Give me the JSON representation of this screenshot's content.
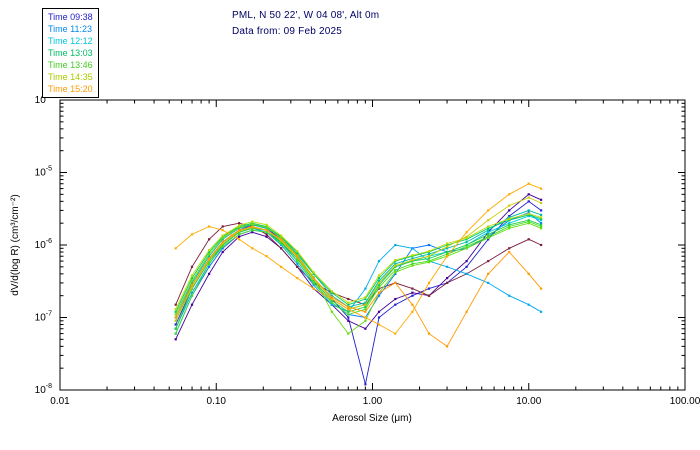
{
  "header": {
    "title_line1": "PML, N 50 22', W 04 08', Alt 0m",
    "title_line2": "Data from: 09 Feb 2025",
    "title_color": "#000066"
  },
  "legend": {
    "items": [
      {
        "label": "Time 09:38",
        "color": "#2222cc"
      },
      {
        "label": "Time 11:23",
        "color": "#0088ee"
      },
      {
        "label": "Time 12:12",
        "color": "#00c4dd"
      },
      {
        "label": "Time 13:03",
        "color": "#00bb66"
      },
      {
        "label": "Time 13:46",
        "color": "#44cc22"
      },
      {
        "label": "Time 14:35",
        "color": "#aacc00"
      },
      {
        "label": "Time 15:20",
        "color": "#ff9900"
      }
    ]
  },
  "chart_data": {
    "type": "line",
    "title": "PML, N 50 22', W 04 08', Alt 0m",
    "subtitle": "Data from: 09 Feb 2025",
    "xlabel": "Aerosol Size (μm)",
    "ylabel": "dV/d(log R) (cm³/cm⁻²)",
    "x_scale": "log",
    "y_scale": "log",
    "xlim": [
      0.01,
      100
    ],
    "ylim": [
      1e-08,
      0.0001
    ],
    "x_ticks": [
      "0.01",
      "0.10",
      "1.00",
      "10.00",
      "100.00"
    ],
    "y_tick_exponents": [
      -8,
      -7,
      -6,
      -5,
      -4
    ],
    "grid": false,
    "legend_position": "top-left-outside",
    "x": [
      0.055,
      0.07,
      0.09,
      0.11,
      0.14,
      0.17,
      0.21,
      0.26,
      0.33,
      0.42,
      0.55,
      0.7,
      0.9,
      1.1,
      1.4,
      1.8,
      2.3,
      3.0,
      4.0,
      5.5,
      7.5,
      10.0,
      12.0
    ],
    "series": [
      {
        "name": "Time 09:38",
        "color": "#2222cc",
        "values": [
          8e-08,
          2.5e-07,
          6e-07,
          1.1e-06,
          1.6e-06,
          1.9e-06,
          1.7e-06,
          1.2e-06,
          7e-07,
          3.5e-07,
          1.8e-07,
          1e-07,
          1.2e-08,
          1e-07,
          1.5e-07,
          2e-07,
          2.5e-07,
          3e-07,
          5e-07,
          1.2e-06,
          2.5e-06,
          4e-06,
          3e-06
        ]
      },
      {
        "name": "Time 09:38",
        "color": "#440099",
        "values": [
          5e-08,
          1.5e-07,
          4e-07,
          8e-07,
          1.3e-06,
          1.5e-06,
          1.3e-06,
          9e-07,
          5e-07,
          2.5e-07,
          1.5e-07,
          9e-08,
          7e-08,
          1.2e-07,
          1.8e-07,
          2.2e-07,
          2e-07,
          3.5e-07,
          6e-07,
          1.5e-06,
          3e-06,
          5e-06,
          4.2e-06
        ]
      },
      {
        "name": "Time 09:38",
        "color": "#7a1f3d",
        "values": [
          1.5e-07,
          5e-07,
          1.2e-06,
          1.8e-06,
          2e-06,
          1.8e-06,
          1.4e-06,
          9e-07,
          5e-07,
          3e-07,
          2.2e-07,
          1.8e-07,
          1.5e-07,
          2.5e-07,
          3e-07,
          2.5e-07,
          2e-07,
          3e-07,
          4e-07,
          6e-07,
          9e-07,
          1.2e-06,
          1e-06
        ]
      },
      {
        "name": "Time 11:23",
        "color": "#0077ff",
        "values": [
          6e-08,
          2e-07,
          5e-07,
          9e-07,
          1.4e-06,
          1.6e-06,
          1.5e-06,
          1.1e-06,
          6e-07,
          3e-07,
          1.6e-07,
          1.1e-07,
          1e-07,
          2e-07,
          4e-07,
          9e-07,
          1e-06,
          8e-07,
          9e-07,
          1.3e-06,
          2.2e-06,
          2.8e-06,
          2e-06
        ]
      },
      {
        "name": "Time 11:23",
        "color": "#00aaee",
        "values": [
          7e-08,
          2.2e-07,
          5.5e-07,
          1e-06,
          1.5e-06,
          1.7e-06,
          1.5e-06,
          1e-06,
          5.5e-07,
          2.8e-07,
          1.5e-07,
          1.2e-07,
          2.5e-07,
          6e-07,
          1e-06,
          9e-07,
          6e-07,
          5e-07,
          4e-07,
          3e-07,
          2e-07,
          1.5e-07,
          1.2e-07
        ]
      },
      {
        "name": "Time 12:12",
        "color": "#00ccdd",
        "values": [
          9e-08,
          2.8e-07,
          6.5e-07,
          1.1e-06,
          1.6e-06,
          1.8e-06,
          1.6e-06,
          1.2e-06,
          7e-07,
          3.5e-07,
          1.8e-07,
          1.3e-07,
          1.5e-07,
          3e-07,
          5e-07,
          6e-07,
          7e-07,
          8e-07,
          1e-06,
          1.5e-06,
          2e-06,
          2.5e-06,
          2.2e-06
        ]
      },
      {
        "name": "Time 12:12",
        "color": "#00bbaa",
        "values": [
          1e-07,
          3e-07,
          7e-07,
          1.2e-06,
          1.7e-06,
          1.9e-06,
          1.7e-06,
          1.3e-06,
          7.5e-07,
          4e-07,
          2e-07,
          1.4e-07,
          1.6e-07,
          3.2e-07,
          5.5e-07,
          6.5e-07,
          7.5e-07,
          9e-07,
          1.1e-06,
          1.6e-06,
          2.4e-06,
          3e-06,
          2.6e-06
        ]
      },
      {
        "name": "Time 13:03",
        "color": "#00cc66",
        "values": [
          1.2e-07,
          3.5e-07,
          8e-07,
          1.3e-06,
          1.8e-06,
          2e-06,
          1.8e-06,
          1.3e-06,
          8e-07,
          4e-07,
          2.2e-07,
          1.5e-07,
          1.8e-07,
          3.5e-07,
          6e-07,
          7e-07,
          8e-07,
          1e-06,
          1.2e-06,
          1.7e-06,
          2.2e-06,
          2.6e-06,
          2.3e-06
        ]
      },
      {
        "name": "Time 13:03",
        "color": "#22cc44",
        "values": [
          7e-08,
          2.5e-07,
          6e-07,
          1e-06,
          1.5e-06,
          1.7e-06,
          1.6e-06,
          1.1e-06,
          6.5e-07,
          3.2e-07,
          1.7e-07,
          1.2e-07,
          1.4e-07,
          2.8e-07,
          5e-07,
          6e-07,
          6.5e-07,
          8e-07,
          1e-06,
          1.4e-06,
          1.9e-06,
          2.2e-06,
          1.9e-06
        ]
      },
      {
        "name": "Time 13:46",
        "color": "#44dd22",
        "values": [
          6e-08,
          2e-07,
          5.5e-07,
          9.5e-07,
          1.4e-06,
          1.6e-06,
          1.5e-06,
          1.05e-06,
          6e-07,
          3e-07,
          1.6e-07,
          1.1e-07,
          1.3e-07,
          2.6e-07,
          4.5e-07,
          5.5e-07,
          6e-07,
          7.5e-07,
          9.5e-07,
          1.3e-06,
          1.8e-06,
          2.1e-06,
          1.8e-06
        ]
      },
      {
        "name": "Time 13:46",
        "color": "#66dd11",
        "values": [
          1.1e-07,
          3.2e-07,
          7.5e-07,
          1.25e-06,
          1.75e-06,
          1.95e-06,
          1.75e-06,
          1.25e-06,
          7.2e-07,
          3.6e-07,
          1.2e-07,
          6e-08,
          9e-08,
          2.2e-07,
          4.2e-07,
          5.2e-07,
          5.8e-07,
          7e-07,
          9e-07,
          1.25e-06,
          1.7e-06,
          2e-06,
          1.7e-06
        ]
      },
      {
        "name": "Time 14:35",
        "color": "#bbdd00",
        "values": [
          1.3e-07,
          3.8e-07,
          8.5e-07,
          1.35e-06,
          1.85e-06,
          2.1e-06,
          1.9e-06,
          1.35e-06,
          8.2e-07,
          4.2e-07,
          2.3e-07,
          1.6e-07,
          1.9e-07,
          3.8e-07,
          6.2e-07,
          7.2e-07,
          8.2e-07,
          1.05e-06,
          1.25e-06,
          1.8e-06,
          2.3e-06,
          2.7e-06,
          2.4e-06
        ]
      },
      {
        "name": "Time 14:35",
        "color": "#cccc00",
        "values": [
          9e-08,
          2.6e-07,
          6.2e-07,
          1.05e-06,
          1.55e-06,
          1.75e-06,
          1.6e-06,
          1.15e-06,
          6.8e-07,
          3.4e-07,
          1.8e-07,
          1.3e-07,
          1.5e-07,
          3e-07,
          5.2e-07,
          6.2e-07,
          7e-07,
          9.5e-07,
          1.3e-06,
          2.2e-06,
          3.5e-06,
          4.5e-06,
          3.8e-06
        ]
      },
      {
        "name": "Time 15:20",
        "color": "#ffaa00",
        "values": [
          9e-07,
          1.4e-06,
          1.8e-06,
          1.6e-06,
          1.2e-06,
          9e-07,
          7e-07,
          5e-07,
          3.5e-07,
          2.5e-07,
          1.8e-07,
          1.3e-07,
          1e-07,
          8e-08,
          6e-08,
          1.2e-07,
          3e-07,
          7e-07,
          1.5e-06,
          3e-06,
          5e-06,
          7e-06,
          6e-06
        ]
      },
      {
        "name": "Time 15:20",
        "color": "#ff9900",
        "values": [
          1e-07,
          2.8e-07,
          6.5e-07,
          1.1e-06,
          1.6e-06,
          1.8e-06,
          1.6e-06,
          1.2e-06,
          7e-07,
          3.5e-07,
          1.9e-07,
          1.4e-07,
          1.2e-07,
          2.2e-07,
          3e-07,
          1.5e-07,
          6e-08,
          4e-08,
          1.2e-07,
          4e-07,
          8e-07,
          4e-07,
          2.5e-07
        ]
      }
    ]
  }
}
